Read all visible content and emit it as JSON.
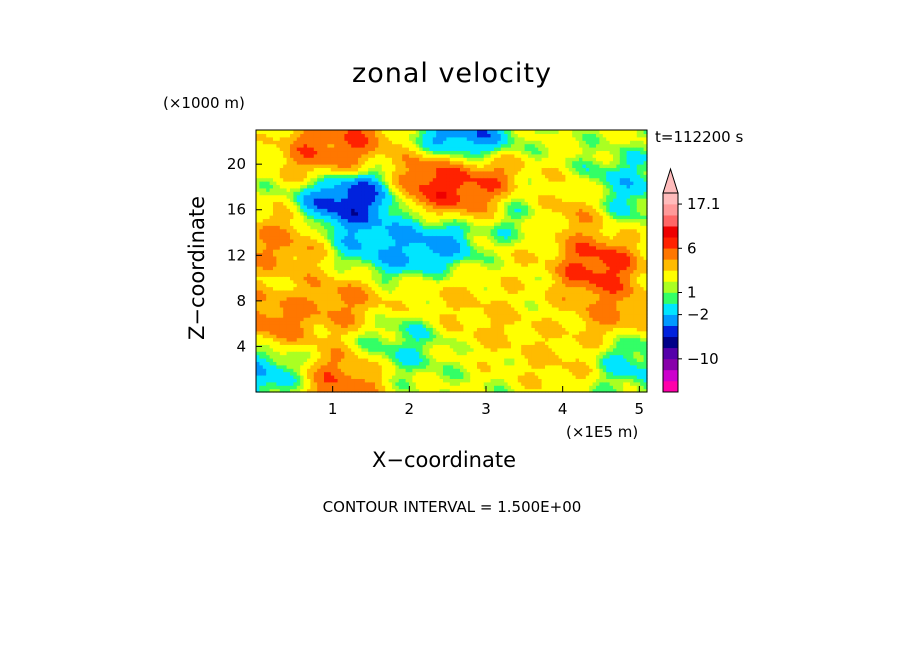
{
  "chart_data": {
    "type": "heatmap",
    "title": "zonal velocity",
    "xlabel": "X−coordinate",
    "ylabel": "Z−coordinate",
    "x_unit": "(×1E5 m)",
    "y_unit": "(×1000 m)",
    "time_label": "t=112200 s",
    "contour_label": "CONTOUR INTERVAL = 1.500E+00",
    "xlim": [
      0,
      5.1
    ],
    "ylim": [
      0,
      23
    ],
    "x_ticks": [
      "1",
      "2",
      "3",
      "4",
      "5"
    ],
    "y_ticks": [
      "4",
      "8",
      "12",
      "16",
      "20"
    ],
    "colorbar": {
      "labels": [
        "17.1",
        "6",
        "1",
        "−2",
        "−10"
      ],
      "colors": [
        "#ff00aa",
        "#cc00cc",
        "#8800aa",
        "#5500aa",
        "#000088",
        "#0022dd",
        "#0099ff",
        "#00e5ff",
        "#33ff66",
        "#aaff22",
        "#ffff00",
        "#ffbb00",
        "#ff7700",
        "#ff2200",
        "#ee0000",
        "#ff6666",
        "#ff9999",
        "#ffbbbb"
      ]
    },
    "levels": [
      -14.5,
      -13.0,
      -11.5,
      -10.0,
      -5.0,
      -3.5,
      -2.0,
      -0.5,
      0.25,
      1.0,
      2.5,
      4.0,
      5.5,
      7.0,
      10.0,
      13.0,
      17.1
    ],
    "field_features": [
      {
        "x": 1.2,
        "z": 17.0,
        "value": -8.0
      },
      {
        "x": 0.9,
        "z": 21.0,
        "value": 5.0
      },
      {
        "x": 1.6,
        "z": 13.0,
        "value": -4.0
      },
      {
        "x": 2.3,
        "z": 12.5,
        "value": -5.0
      },
      {
        "x": 2.4,
        "z": 18.5,
        "value": 7.0
      },
      {
        "x": 3.0,
        "z": 18.0,
        "value": 6.0
      },
      {
        "x": 3.5,
        "z": 16.0,
        "value": -3.0
      },
      {
        "x": 4.4,
        "z": 11.0,
        "value": 7.0
      },
      {
        "x": 4.0,
        "z": 16.0,
        "value": 4.0
      },
      {
        "x": 2.7,
        "z": 22.5,
        "value": -6.0
      },
      {
        "x": 1.2,
        "z": 22.5,
        "value": 5.0
      },
      {
        "x": 4.8,
        "z": 18.0,
        "value": -3.0
      },
      {
        "x": 4.7,
        "z": 7.0,
        "value": 4.0
      },
      {
        "x": 3.9,
        "z": 3.0,
        "value": 2.0
      },
      {
        "x": 1.1,
        "z": 1.0,
        "value": 5.0
      },
      {
        "x": 2.5,
        "z": 9.0,
        "value": 2.0
      },
      {
        "x": 0.1,
        "z": 2.0,
        "value": -4.0
      },
      {
        "x": 5.0,
        "z": 3.0,
        "value": -3.0
      },
      {
        "x": 0.3,
        "z": 13.0,
        "value": 4.0
      },
      {
        "x": 0.2,
        "z": 6.0,
        "value": 5.0
      },
      {
        "x": 1.1,
        "z": 8.0,
        "value": 4.0
      },
      {
        "x": 3.1,
        "z": 6.0,
        "value": 2.0
      },
      {
        "x": 1.9,
        "z": 4.0,
        "value": -2.0
      },
      {
        "x": 3.6,
        "z": 11.0,
        "value": 1.0
      }
    ]
  }
}
